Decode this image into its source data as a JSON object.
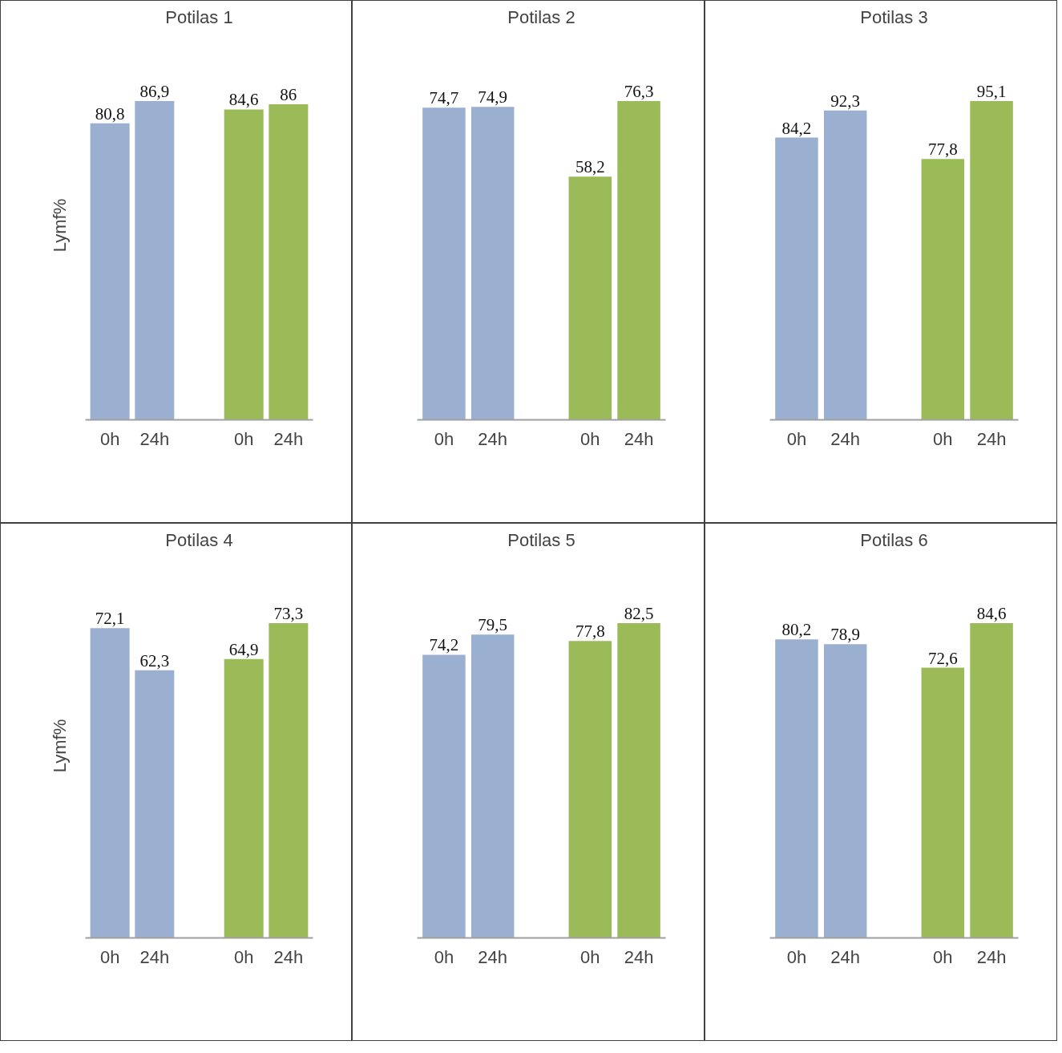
{
  "chart_data": [
    {
      "type": "bar",
      "title": "Potilas 1",
      "ylabel": "Lymf%",
      "categories": [
        "0h",
        "24h",
        "0h",
        "24h"
      ],
      "values": [
        80.8,
        86.9,
        84.6,
        86
      ],
      "value_labels": [
        "80,8",
        "86,9",
        "84,6",
        "86"
      ],
      "colors": [
        "#9bb0d0",
        "#9bb0d0",
        "#9bbb59",
        "#9bbb59"
      ],
      "tick_labels": "x",
      "grid": false
    },
    {
      "type": "bar",
      "title": "Potilas 2",
      "categories": [
        "0h",
        "24h",
        "0h",
        "24h"
      ],
      "values": [
        74.7,
        74.9,
        58.2,
        76.3
      ],
      "value_labels": [
        "74,7",
        "74,9",
        "58,2",
        "76,3"
      ],
      "colors": [
        "#9bb0d0",
        "#9bb0d0",
        "#9bbb59",
        "#9bbb59"
      ],
      "tick_labels": "x",
      "grid": false
    },
    {
      "type": "bar",
      "title": "Potilas 3",
      "categories": [
        "0h",
        "24h",
        "0h",
        "24h"
      ],
      "values": [
        84.2,
        92.3,
        77.8,
        95.1
      ],
      "value_labels": [
        "84,2",
        "92,3",
        "77,8",
        "95,1"
      ],
      "colors": [
        "#9bb0d0",
        "#9bb0d0",
        "#9bbb59",
        "#9bbb59"
      ],
      "tick_labels": "x",
      "grid": false
    },
    {
      "type": "bar",
      "title": "Potilas 4",
      "ylabel": "Lymf%",
      "categories": [
        "0h",
        "24h",
        "0h",
        "24h"
      ],
      "values": [
        72.1,
        62.3,
        64.9,
        73.3
      ],
      "value_labels": [
        "72,1",
        "62,3",
        "64,9",
        "73,3"
      ],
      "colors": [
        "#9bb0d0",
        "#9bb0d0",
        "#9bbb59",
        "#9bbb59"
      ],
      "tick_labels": "x",
      "grid": false
    },
    {
      "type": "bar",
      "title": "Potilas 5",
      "categories": [
        "0h",
        "24h",
        "0h",
        "24h"
      ],
      "values": [
        74.2,
        79.5,
        77.8,
        82.5
      ],
      "value_labels": [
        "74,2",
        "79,5",
        "77,8",
        "82,5"
      ],
      "colors": [
        "#9bb0d0",
        "#9bb0d0",
        "#9bbb59",
        "#9bbb59"
      ],
      "tick_labels": "x",
      "grid": false
    },
    {
      "type": "bar",
      "title": "Potilas 6",
      "categories": [
        "0h",
        "24h",
        "0h",
        "24h"
      ],
      "values": [
        80.2,
        78.9,
        72.6,
        84.6
      ],
      "value_labels": [
        "80,2",
        "78,9",
        "72,6",
        "84,6"
      ],
      "colors": [
        "#9bb0d0",
        "#9bb0d0",
        "#9bbb59",
        "#9bbb59"
      ],
      "tick_labels": "x",
      "grid": false
    }
  ]
}
